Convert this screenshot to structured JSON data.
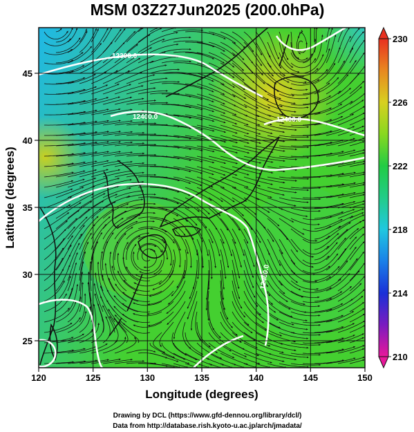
{
  "title": "MSM 03Z27Jun2025 (200.0hPa)",
  "xlabel": "Longitude (degrees)",
  "ylabel": "Latitude  (degrees)",
  "x_ticks": [
    "120",
    "125",
    "130",
    "135",
    "140",
    "145",
    "150"
  ],
  "y_ticks": [
    "25",
    "30",
    "35",
    "40",
    "45"
  ],
  "colorbar": {
    "ticks": [
      "230",
      "226",
      "222",
      "218",
      "214",
      "210"
    ],
    "range": [
      210,
      230
    ]
  },
  "contour_labels": [
    "12300.0",
    "12400.0",
    "12400.0",
    "12400.0"
  ],
  "credit_line1": "Drawing by DCL (https://www.gfd-dennou.org/library/dcl/)",
  "credit_line2": "Data from http://database.rish.kyoto-u.ac.jp/arch/jmadata/",
  "chart_data": {
    "type": "heatmap",
    "title": "MSM 03Z27Jun2025 (200.0hPa)",
    "xlabel": "Longitude (degrees)",
    "ylabel": "Latitude  (degrees)",
    "xlim": [
      120,
      150
    ],
    "ylim": [
      22.5,
      47.5
    ],
    "x_ticks": [
      120,
      125,
      130,
      135,
      140,
      145,
      150
    ],
    "y_ticks": [
      25,
      30,
      35,
      40,
      45
    ],
    "colorbar_range": [
      210,
      230
    ],
    "colorbar_ticks": [
      210,
      214,
      218,
      222,
      226,
      230
    ],
    "grid": true,
    "contour_labels": [
      "12300.0",
      "12400.0",
      "12400.0",
      "12400.0"
    ],
    "colors": {
      "min": "#e8189a",
      "cold": "#1a30d8",
      "cyan": "#20c8e0",
      "mid": "#22cc44",
      "warm": "#d8d020",
      "max": "#e83020"
    }
  }
}
